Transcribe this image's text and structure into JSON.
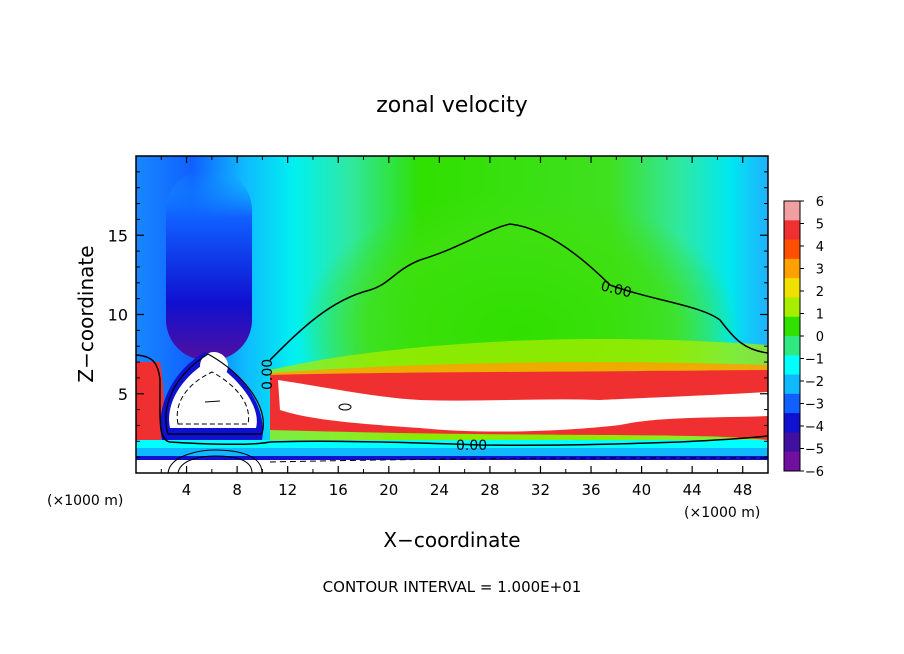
{
  "chart_data": {
    "type": "heatmap",
    "title": "zonal velocity",
    "xlabel": "X−coordinate",
    "ylabel": "Z−coordinate",
    "x_unit": "(×1000 m)",
    "xlim": [
      0,
      50
    ],
    "ylim": [
      0,
      20
    ],
    "x_ticks": [
      4,
      8,
      12,
      16,
      20,
      24,
      28,
      32,
      36,
      40,
      44,
      48
    ],
    "y_ticks": [
      5,
      10,
      15
    ],
    "colorbar": {
      "ticks": [
        6,
        5,
        4,
        3,
        2,
        1,
        0,
        -1,
        -2,
        -3,
        -4,
        -5,
        -6
      ],
      "colors": [
        "#f0a0a0",
        "#f03030",
        "#ff5000",
        "#ffa000",
        "#f0e000",
        "#a8ee00",
        "#30e000",
        "#30e880",
        "#00ffff",
        "#10b8ff",
        "#1060ff",
        "#1010d0",
        "#4010a0",
        "#7010a0"
      ]
    },
    "contour_labels": [
      "0.00",
      "0.00",
      "0.00"
    ],
    "footer": "CONTOUR INTERVAL = 1.000E+01"
  }
}
